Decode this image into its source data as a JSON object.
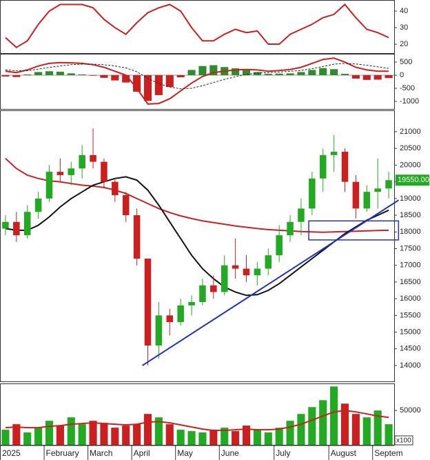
{
  "chart_data": [
    {
      "type": "line",
      "ylim": [
        14.6,
        46.7
      ],
      "yticks": [
        20,
        30,
        40
      ],
      "series": [
        {
          "color": "#cc1f1f",
          "values": [
            24,
            18,
            22,
            32,
            40,
            44,
            44,
            44,
            42,
            35,
            30,
            26,
            33,
            39,
            42,
            44,
            40,
            30,
            22,
            22,
            26,
            29,
            27,
            28,
            20,
            20,
            26,
            29,
            32,
            36,
            38,
            44,
            36,
            29,
            27,
            24
          ]
        }
      ]
    },
    {
      "type": "macd",
      "ylim": [
        -1289,
        816
      ],
      "yticks": [
        500,
        0,
        -500,
        -1000
      ],
      "series": [
        {
          "color": "#cc1f1f",
          "values": [
            150,
            100,
            200,
            350,
            450,
            480,
            470,
            450,
            400,
            300,
            150,
            0,
            -500,
            -1100,
            -1080,
            -900,
            -600,
            -300,
            -50,
            100,
            150,
            200,
            220,
            200,
            150,
            180,
            220,
            300,
            450,
            600,
            650,
            500,
            300,
            200,
            150,
            150
          ]
        },
        {
          "color": "#222222",
          "dashed": true,
          "values": [
            200,
            170,
            170,
            230,
            300,
            350,
            400,
            420,
            420,
            400,
            350,
            280,
            130,
            -120,
            -320,
            -450,
            -520,
            -500,
            -400,
            -280,
            -160,
            -60,
            30,
            80,
            100,
            120,
            150,
            180,
            250,
            330,
            420,
            450,
            430,
            380,
            320,
            260
          ]
        },
        {
          "type": "histogram",
          "color": "#2e8b2e",
          "negative_color": "#cc1f1f",
          "values": [
            -50,
            -70,
            30,
            120,
            150,
            130,
            70,
            30,
            -20,
            -100,
            -200,
            -280,
            -630,
            -980,
            -760,
            -450,
            -80,
            200,
            350,
            380,
            310,
            260,
            190,
            120,
            50,
            60,
            70,
            120,
            200,
            270,
            230,
            50,
            -130,
            -180,
            -170,
            -110
          ]
        }
      ]
    },
    {
      "type": "candlestick",
      "ylim": [
        13525,
        21640
      ],
      "yticks": [
        14000,
        14500,
        15000,
        15500,
        16000,
        16500,
        17000,
        17500,
        18000,
        18500,
        19000,
        19500,
        20000,
        20500,
        21000
      ],
      "up_color": "#22aa22",
      "down_color": "#cc1f1f",
      "open": [
        18100,
        18300,
        17900,
        18600,
        19000,
        19800,
        19700,
        19900,
        20300,
        20100,
        19500,
        19100,
        18500,
        17200,
        14600,
        15500,
        15300,
        15800,
        15900,
        16400,
        16200,
        17000,
        16900,
        16700,
        16900,
        17300,
        17900,
        18300,
        18700,
        19600,
        20300,
        20400,
        19500,
        18700,
        19200,
        19300
      ],
      "high": [
        18500,
        18600,
        18800,
        19200,
        20000,
        20200,
        20100,
        20600,
        21100,
        20200,
        19600,
        19200,
        18700,
        17200,
        15900,
        15700,
        16000,
        16100,
        16600,
        16700,
        17300,
        17800,
        17300,
        17100,
        17500,
        18200,
        18500,
        19000,
        19800,
        20500,
        20900,
        20500,
        19700,
        19400,
        20200,
        19800
      ],
      "low": [
        17900,
        17700,
        17800,
        18400,
        18900,
        19500,
        19400,
        19600,
        19900,
        19300,
        18900,
        18300,
        17000,
        14000,
        14200,
        14900,
        15200,
        15500,
        15800,
        16000,
        16100,
        16600,
        16500,
        16400,
        16700,
        17100,
        17700,
        17900,
        18500,
        19200,
        19800,
        19200,
        18400,
        18600,
        18700,
        19000
      ],
      "close": [
        18300,
        17900,
        18600,
        19000,
        19800,
        19700,
        19900,
        20300,
        20100,
        19500,
        19100,
        18500,
        17200,
        14600,
        15500,
        15300,
        15800,
        15900,
        16400,
        16200,
        17000,
        16900,
        16700,
        16900,
        17300,
        17900,
        18300,
        18700,
        19600,
        20300,
        20400,
        19500,
        18700,
        19200,
        19300,
        19550
      ],
      "series": [
        {
          "color": "#cc1f1f",
          "values": [
            20200,
            19900,
            19700,
            19600,
            19530,
            19500,
            19450,
            19400,
            19370,
            19330,
            19250,
            19150,
            19000,
            18850,
            18700,
            18580,
            18480,
            18400,
            18330,
            18280,
            18230,
            18180,
            18140,
            18100,
            18070,
            18050,
            18030,
            18010,
            18000,
            17990,
            18000,
            18010,
            18020,
            18030,
            18040,
            18050
          ]
        },
        {
          "color": "#111111",
          "values": [
            18100,
            18050,
            18050,
            18200,
            18450,
            18750,
            19000,
            19200,
            19400,
            19500,
            19600,
            19650,
            19550,
            19250,
            18800,
            18300,
            17800,
            17300,
            16900,
            16600,
            16350,
            16200,
            16100,
            16120,
            16250,
            16450,
            16700,
            16950,
            17200,
            17450,
            17700,
            17950,
            18150,
            18350,
            18500,
            18650
          ]
        }
      ],
      "trendline": {
        "color": "#2233bb",
        "from": [
          13,
          14000
        ],
        "to": [
          36.4,
          18950
        ]
      },
      "box": {
        "color": "#2233bb",
        "x": [
          28.2,
          36.4
        ],
        "y": [
          17760,
          18330
        ]
      },
      "last_price": {
        "value": 19550,
        "label": "19550.00",
        "color": "#22aa22"
      }
    },
    {
      "type": "bar",
      "ylim": [
        0,
        89400
      ],
      "yticks": [
        50000
      ],
      "unit_label": "x100",
      "categories": [
        "2025",
        null,
        null,
        null,
        "February",
        null,
        null,
        null,
        "March",
        null,
        null,
        null,
        "April",
        null,
        null,
        null,
        "May",
        null,
        null,
        null,
        "June",
        null,
        null,
        null,
        null,
        "July",
        null,
        null,
        null,
        null,
        "August",
        null,
        null,
        null,
        "Septem",
        null
      ],
      "values": [
        22000,
        30000,
        18000,
        25000,
        35000,
        28000,
        40000,
        30000,
        35000,
        32000,
        25000,
        28000,
        30000,
        45000,
        40000,
        30000,
        22000,
        20000,
        18000,
        22000,
        25000,
        20000,
        28000,
        22000,
        18000,
        25000,
        35000,
        45000,
        55000,
        65000,
        85000,
        60000,
        45000,
        40000,
        50000,
        30000
      ],
      "color": "#22aa22",
      "series": [
        {
          "color": "#cc1f1f",
          "values": [
            25000,
            26000,
            25000,
            25000,
            27000,
            28000,
            30000,
            31000,
            32000,
            31000,
            30000,
            29000,
            30000,
            33000,
            34000,
            32000,
            29000,
            26000,
            23000,
            21000,
            21000,
            22000,
            23000,
            22000,
            22000,
            23000,
            26000,
            30000,
            36000,
            42000,
            48000,
            50000,
            48000,
            45000,
            42000,
            40000
          ]
        }
      ]
    }
  ]
}
